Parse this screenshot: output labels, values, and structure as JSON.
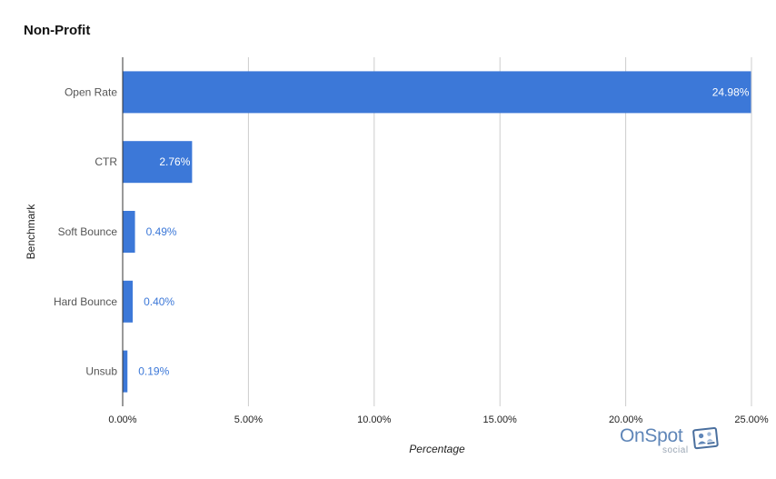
{
  "chart_data": {
    "type": "bar",
    "orientation": "horizontal",
    "title": "Non-Profit",
    "xlabel": "Percentage",
    "ylabel": "Benchmark",
    "categories": [
      "Open Rate",
      "CTR",
      "Soft Bounce",
      "Hard Bounce",
      "Unsub"
    ],
    "values": [
      24.98,
      2.76,
      0.49,
      0.4,
      0.19
    ],
    "data_labels": [
      "24.98%",
      "2.76%",
      "0.49%",
      "0.40%",
      "0.19%"
    ],
    "xlim": [
      0,
      25
    ],
    "x_ticks": [
      0,
      5,
      10,
      15,
      20,
      25
    ],
    "x_tick_labels": [
      "0.00%",
      "5.00%",
      "10.00%",
      "15.00%",
      "20.00%",
      "25.00%"
    ],
    "grid": true,
    "legend": "none",
    "bar_color": "#3c78d8"
  },
  "logo": {
    "word": "OnSpot",
    "sub": "social",
    "color": "#5f86b8"
  }
}
